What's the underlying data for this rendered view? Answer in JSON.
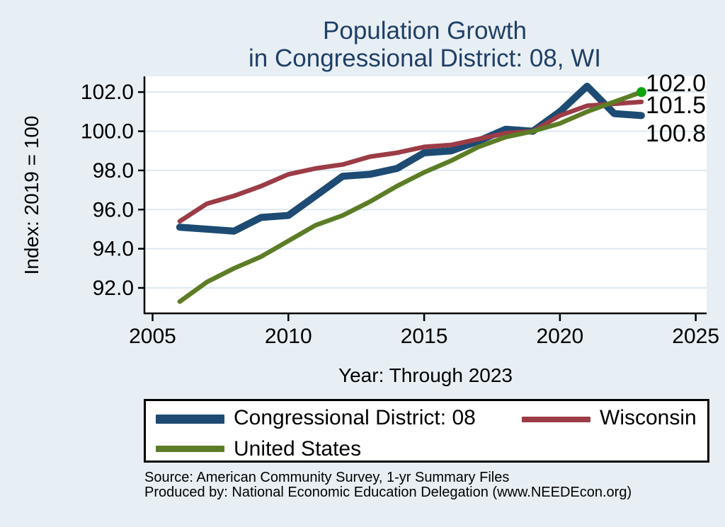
{
  "title": {
    "line1": "Population Growth",
    "line2": "in Congressional District: 08, WI"
  },
  "chart_data": {
    "type": "line",
    "title": "Population Growth in Congressional District: 08, WI",
    "xlabel": "Year: Through 2023",
    "ylabel": "Index: 2019 = 100",
    "x": [
      2006,
      2007,
      2008,
      2009,
      2010,
      2011,
      2012,
      2013,
      2014,
      2015,
      2016,
      2017,
      2018,
      2019,
      2020,
      2021,
      2022,
      2023
    ],
    "series": [
      {
        "name": "Congressional District: 08",
        "color": "#1d4b73",
        "stroke_width": 10,
        "values": [
          95.1,
          95.0,
          94.9,
          95.6,
          95.7,
          96.7,
          97.7,
          97.8,
          98.1,
          98.9,
          99.0,
          99.5,
          100.1,
          100.0,
          101.0,
          102.3,
          100.9,
          100.8
        ],
        "end_label": "100.8"
      },
      {
        "name": "Wisconsin",
        "color": "#9c3c46",
        "stroke_width": 6.5,
        "values": [
          95.4,
          96.3,
          96.7,
          97.2,
          97.8,
          98.1,
          98.3,
          98.7,
          98.9,
          99.2,
          99.3,
          99.6,
          99.9,
          100.0,
          100.8,
          101.3,
          101.4,
          101.5
        ],
        "end_label": "101.5"
      },
      {
        "name": "United States",
        "color": "#5c7d26",
        "stroke_width": 6.5,
        "values": [
          91.3,
          92.3,
          93.0,
          93.6,
          94.4,
          95.2,
          95.7,
          96.4,
          97.2,
          97.9,
          98.5,
          99.2,
          99.7,
          100.0,
          100.4,
          101.0,
          101.5,
          102.0
        ],
        "end_label": "102.0",
        "end_marker_color": "#0fa30f"
      }
    ],
    "xticks": [
      "2005",
      "2010",
      "2015",
      "2020",
      "2025"
    ],
    "yticks": [
      "92.0",
      "94.0",
      "96.0",
      "98.0",
      "100.0",
      "102.0"
    ],
    "xlim": [
      2004.7,
      2025.4
    ],
    "ylim": [
      90.7,
      102.8
    ],
    "grid": "horizontal",
    "legend_position": "bottom"
  },
  "legend": {
    "items": [
      {
        "label": "Congressional District: 08",
        "color": "#1d4b73"
      },
      {
        "label": "Wisconsin",
        "color": "#9c3c46"
      },
      {
        "label": "United States",
        "color": "#5c7d26"
      }
    ]
  },
  "source": {
    "line1": "Source: American Community Survey, 1-yr Summary Files",
    "line2": "Produced by: National Economic Education Delegation (www.NEEDEcon.org)"
  },
  "colors": {
    "background": "#e8eff4",
    "plot_background": "#ffffff",
    "gridline": "#dde9f1",
    "axis": "#000000",
    "title_text": "#1f3f66",
    "tick_text": "#000000"
  }
}
